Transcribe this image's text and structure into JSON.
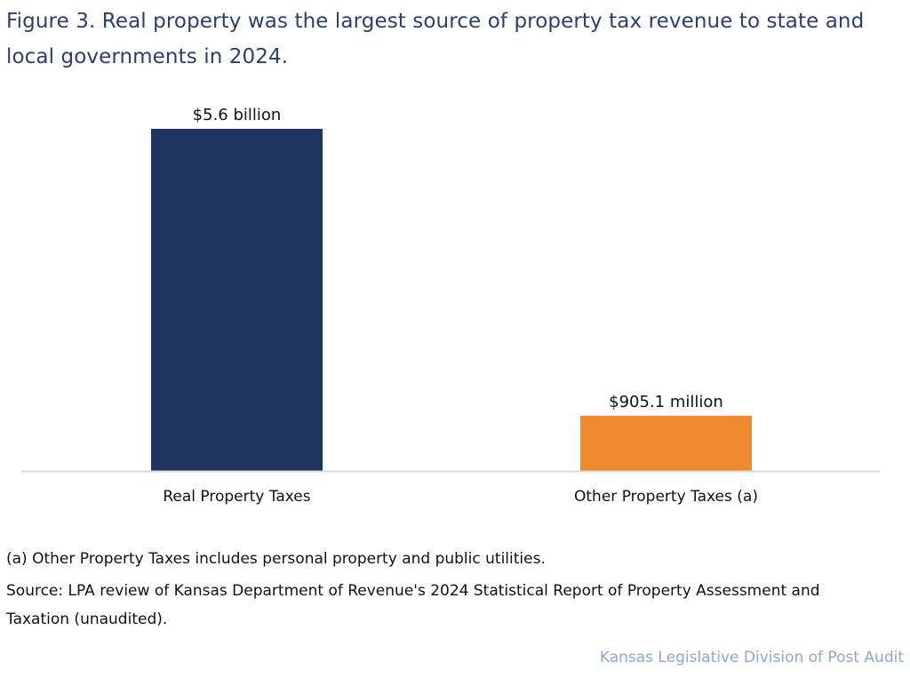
{
  "title": "Figure 3. Real property was the largest source of property tax revenue to state and local governments in 2024.",
  "chart_data": {
    "type": "bar",
    "title": "Figure 3. Real property was the largest source of property tax revenue to state and local governments in 2024.",
    "categories": [
      "Real Property Taxes",
      "Other Property Taxes (a)"
    ],
    "values": [
      5.6,
      0.9051
    ],
    "units": "billions of dollars",
    "data_labels": [
      "$5.6 billion",
      "$905.1 million"
    ],
    "colors": [
      "#1d3461",
      "#f08a2e"
    ],
    "xlabel": "",
    "ylabel": "",
    "ylim": [
      0,
      5.6
    ],
    "grid": false
  },
  "footnote": "(a) Other Property Taxes includes personal property and public utilities.",
  "source": "Source: LPA review of Kansas Department of Revenue's 2024 Statistical Report of Property Assessment and Taxation (unaudited).",
  "credit": "Kansas Legislative Division of Post Audit"
}
